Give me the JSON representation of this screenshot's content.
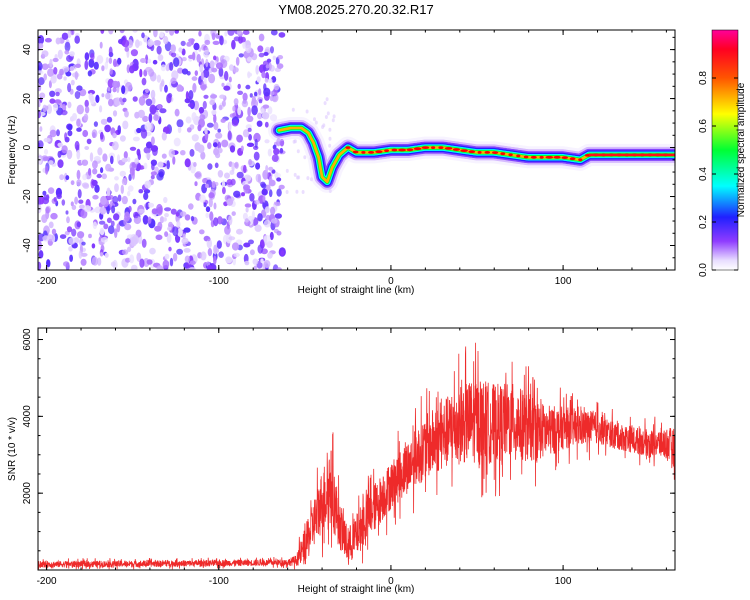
{
  "title": "YM08.2025.270.20.32.R17",
  "chart_data": [
    {
      "type": "heatmap",
      "name": "spectrogram",
      "xlabel": "Height of straight line (km)",
      "ylabel": "Frequency (Hz)",
      "xlim": [
        -205,
        165
      ],
      "ylim": [
        -50,
        48
      ],
      "xticks": [
        -200,
        -100,
        0,
        100
      ],
      "xtick_labels": [
        "-200",
        "-100",
        "0",
        "100"
      ],
      "yticks": [
        -40,
        -20,
        0,
        20,
        40
      ],
      "ytick_labels": [
        "-40",
        "-20",
        "0",
        "20",
        "40"
      ],
      "colorbar": {
        "label": "Normalized spectral amplitude",
        "range": [
          0,
          1
        ],
        "ticks": [
          0.0,
          0.2,
          0.4,
          0.6,
          0.8
        ],
        "tick_labels": [
          "0.0",
          "0.2",
          "0.4",
          "0.6",
          "0.8"
        ],
        "colormap": "rainbow (white→violet→blue→cyan→green→yellow→red→magenta)"
      },
      "features": [
        {
          "desc": "broadband noise",
          "x_range": [
            -205,
            -63
          ],
          "freq_range": [
            -50,
            48
          ],
          "amplitude": 0.2
        },
        {
          "desc": "tone ridge (freq vs height)",
          "x": [
            -65,
            -58,
            -52,
            -48,
            -45,
            -42,
            -40,
            -37,
            -34,
            -30,
            -25,
            -20,
            -10,
            0,
            10,
            20,
            30,
            40,
            50,
            60,
            70,
            80,
            90,
            100,
            110,
            115,
            130,
            150,
            165
          ],
          "freq": [
            7,
            8,
            8,
            6,
            2,
            -4,
            -12,
            -14,
            -8,
            -3,
            0,
            -2,
            -2,
            -1,
            -1,
            0,
            0,
            -1,
            -2,
            -2,
            -3,
            -4,
            -4,
            -4,
            -5,
            -3,
            -3,
            -3,
            -3
          ],
          "amplitude": 0.9
        }
      ],
      "color_red": "#ff0000",
      "color_violet": "#7a1ef0"
    },
    {
      "type": "line",
      "name": "snr",
      "xlabel": "Height of straight line (km)",
      "ylabel": "SNR (10 * v/v)",
      "xlim": [
        -205,
        165
      ],
      "ylim": [
        0,
        6300
      ],
      "xticks": [
        -200,
        -100,
        0,
        100
      ],
      "xtick_labels": [
        "-200",
        "-100",
        "0",
        "100"
      ],
      "yticks": [
        2000,
        4000,
        6000
      ],
      "ytick_labels": [
        "2000",
        "4000",
        "6000"
      ],
      "line_color": "#ee2a2a",
      "envelope": {
        "x": [
          -205,
          -150,
          -100,
          -60,
          -55,
          -50,
          -45,
          -40,
          -35,
          -30,
          -25,
          -20,
          -15,
          -10,
          -5,
          0,
          10,
          20,
          30,
          40,
          50,
          60,
          70,
          80,
          90,
          100,
          110,
          120,
          130,
          140,
          150,
          160,
          165
        ],
        "mean": [
          150,
          160,
          180,
          200,
          250,
          600,
          1200,
          1800,
          2200,
          1200,
          600,
          900,
          1300,
          1600,
          1900,
          2200,
          2700,
          3200,
          3500,
          3800,
          3900,
          3800,
          3900,
          3700,
          3600,
          3700,
          3700,
          3700,
          3500,
          3400,
          3300,
          3300,
          3200
        ],
        "spread": [
          120,
          120,
          120,
          120,
          200,
          700,
          900,
          1200,
          1500,
          900,
          700,
          800,
          900,
          900,
          900,
          900,
          1000,
          1200,
          1300,
          1500,
          1600,
          1500,
          1400,
          1300,
          1000,
          800,
          700,
          600,
          500,
          500,
          500,
          600,
          700
        ]
      }
    }
  ]
}
